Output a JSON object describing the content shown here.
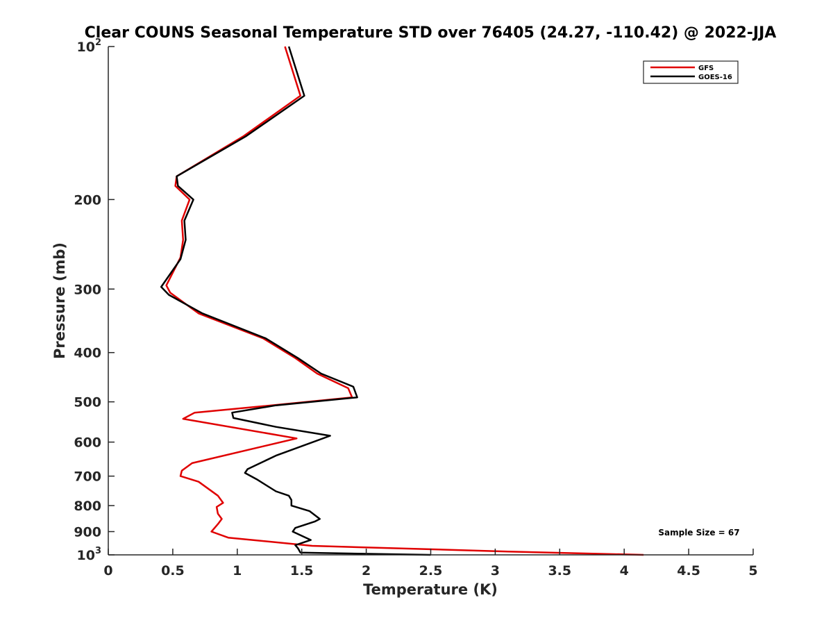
{
  "chart_data": {
    "type": "line",
    "title": "Clear COUNS Seasonal Temperature STD over 76405 (24.27, -110.42) @ 2022-JJA",
    "xlabel": "Temperature (K)",
    "ylabel": "Pressure (mb)",
    "xlim": [
      0,
      5
    ],
    "ylim": [
      100,
      1000
    ],
    "yscale": "log",
    "yreversed": true,
    "xticks": [
      "0",
      "0.5",
      "1",
      "1.5",
      "2",
      "2.5",
      "3",
      "3.5",
      "4",
      "4.5",
      "5"
    ],
    "xtick_values": [
      0,
      0.5,
      1,
      1.5,
      2,
      2.5,
      3,
      3.5,
      4,
      4.5,
      5
    ],
    "yticks": [
      {
        "value": 100,
        "base": "10",
        "exp": "2"
      },
      {
        "value": 200,
        "base": "200",
        "exp": ""
      },
      {
        "value": 300,
        "base": "300",
        "exp": ""
      },
      {
        "value": 400,
        "base": "400",
        "exp": ""
      },
      {
        "value": 500,
        "base": "500",
        "exp": ""
      },
      {
        "value": 600,
        "base": "600",
        "exp": ""
      },
      {
        "value": 700,
        "base": "700",
        "exp": ""
      },
      {
        "value": 800,
        "base": "800",
        "exp": ""
      },
      {
        "value": 900,
        "base": "900",
        "exp": ""
      },
      {
        "value": 1000,
        "base": "10",
        "exp": "3"
      }
    ],
    "legend_position": "top-right",
    "annotation": "Sample Size = 67",
    "series": [
      {
        "name": "GFS",
        "color": "#e00000",
        "points": [
          [
            1.37,
            100
          ],
          [
            1.49,
            125
          ],
          [
            1.05,
            150
          ],
          [
            0.53,
            180
          ],
          [
            0.52,
            188
          ],
          [
            0.63,
            200
          ],
          [
            0.57,
            220
          ],
          [
            0.58,
            240
          ],
          [
            0.56,
            260
          ],
          [
            0.45,
            295
          ],
          [
            0.48,
            305
          ],
          [
            0.7,
            335
          ],
          [
            1.2,
            375
          ],
          [
            1.45,
            410
          ],
          [
            1.62,
            440
          ],
          [
            1.86,
            470
          ],
          [
            1.89,
            490
          ],
          [
            1.2,
            510
          ],
          [
            0.67,
            525
          ],
          [
            0.58,
            540
          ],
          [
            1.46,
            590
          ],
          [
            0.65,
            660
          ],
          [
            0.57,
            683
          ],
          [
            0.56,
            700
          ],
          [
            0.7,
            718
          ],
          [
            0.85,
            765
          ],
          [
            0.89,
            790
          ],
          [
            0.84,
            805
          ],
          [
            0.85,
            830
          ],
          [
            0.88,
            850
          ],
          [
            0.85,
            870
          ],
          [
            0.8,
            900
          ],
          [
            0.93,
            925
          ],
          [
            1.58,
            960
          ],
          [
            3.1,
            985
          ],
          [
            4.15,
            1000
          ]
        ]
      },
      {
        "name": "GOES-16",
        "color": "#000000",
        "points": [
          [
            1.4,
            100
          ],
          [
            1.52,
            125
          ],
          [
            1.07,
            150
          ],
          [
            0.53,
            180
          ],
          [
            0.54,
            188
          ],
          [
            0.66,
            200
          ],
          [
            0.59,
            220
          ],
          [
            0.6,
            240
          ],
          [
            0.56,
            262
          ],
          [
            0.41,
            297
          ],
          [
            0.47,
            308
          ],
          [
            0.73,
            335
          ],
          [
            1.22,
            375
          ],
          [
            1.47,
            410
          ],
          [
            1.65,
            440
          ],
          [
            1.9,
            467
          ],
          [
            1.93,
            490
          ],
          [
            1.3,
            508
          ],
          [
            0.96,
            525
          ],
          [
            0.97,
            538
          ],
          [
            1.3,
            560
          ],
          [
            1.72,
            583
          ],
          [
            1.3,
            638
          ],
          [
            1.08,
            678
          ],
          [
            1.06,
            690
          ],
          [
            1.15,
            710
          ],
          [
            1.3,
            750
          ],
          [
            1.4,
            765
          ],
          [
            1.42,
            780
          ],
          [
            1.42,
            800
          ],
          [
            1.56,
            820
          ],
          [
            1.64,
            850
          ],
          [
            1.6,
            860
          ],
          [
            1.45,
            885
          ],
          [
            1.43,
            900
          ],
          [
            1.57,
            935
          ],
          [
            1.45,
            957
          ],
          [
            1.47,
            970
          ],
          [
            1.49,
            990
          ],
          [
            2.5,
            1000
          ]
        ]
      }
    ]
  }
}
